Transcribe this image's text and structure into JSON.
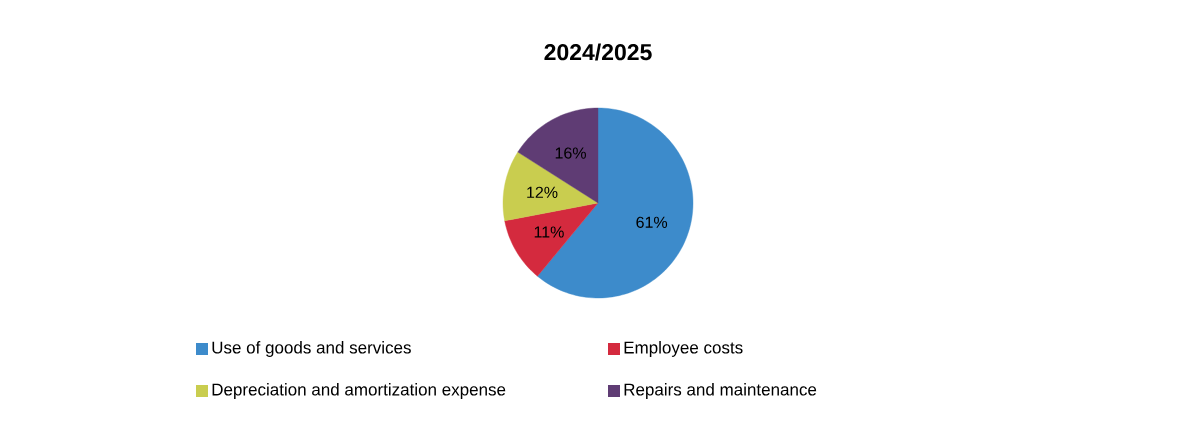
{
  "chart_data": {
    "type": "pie",
    "title": "2024/2025",
    "categories": [
      "Use of goods and services",
      "Employee costs",
      "Depreciation and amortization expense",
      "Repairs and maintenance"
    ],
    "values": [
      61,
      11,
      12,
      16
    ],
    "value_labels": [
      "61%",
      "11%",
      "12%",
      "16%"
    ],
    "colors": [
      "#3d8bcb",
      "#d42a3e",
      "#c9cd4f",
      "#5f3c74"
    ],
    "legend": "bottom"
  }
}
